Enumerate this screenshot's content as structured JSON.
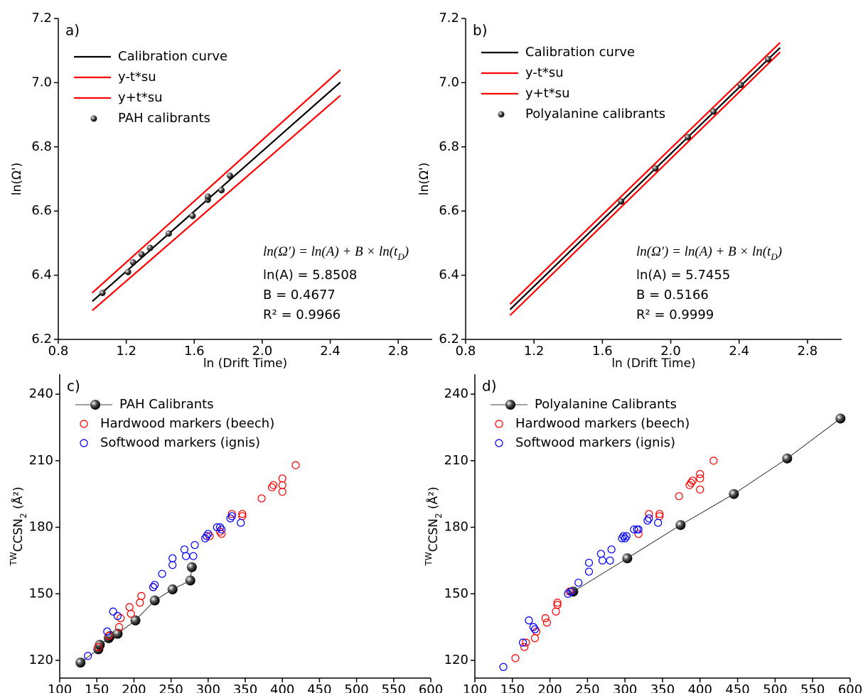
{
  "chart_data": [
    {
      "type": "scatter",
      "panel_label": "a)",
      "x_label": "ln (Drift Time)",
      "y_label": "ln(Ω')",
      "xlim": [
        0.8,
        3.0
      ],
      "xticks": [
        0.8,
        1.2,
        1.6,
        {
          "value": 2,
          "label": "2.0"
        },
        2.4,
        2.8
      ],
      "ylim": [
        6.2,
        7.2
      ],
      "yticks": [
        6.2,
        6.4,
        6.6,
        6.8,
        {
          "value": 7,
          "label": "7.0"
        },
        7.2
      ],
      "legend": "upper left",
      "series": [
        {
          "name": "Calibration curve",
          "mode": "line",
          "color": "#000000",
          "x": [
            1.0,
            2.46
          ],
          "values": [
            6.3185,
            7.0014
          ]
        },
        {
          "name": "y-t*su",
          "mode": "line",
          "color": "#ff0000",
          "x": [
            1.0,
            2.46
          ],
          "values": [
            6.29,
            6.96
          ]
        },
        {
          "name": "y+t*su",
          "mode": "line",
          "color": "#ff0000",
          "x": [
            1.0,
            2.46
          ],
          "values": [
            6.345,
            7.04
          ]
        },
        {
          "name": "PAH calibrants",
          "mode": "markers",
          "marker": "sphere",
          "color": "#000000",
          "x": [
            1.06,
            1.21,
            1.24,
            1.29,
            1.34,
            1.45,
            1.59,
            1.68,
            1.68,
            1.76,
            1.81
          ],
          "values": [
            6.345,
            6.41,
            6.44,
            6.465,
            6.485,
            6.53,
            6.585,
            6.635,
            6.645,
            6.665,
            6.71
          ]
        }
      ],
      "equation": [
        "ln(Ω′) = ln(A) + B × ln(t",
        "D",
        ")"
      ],
      "annotations": [
        "ln(A) = 5.8508",
        "B = 0.4677",
        "R² = 0.9966"
      ]
    },
    {
      "type": "scatter",
      "panel_label": "b)",
      "x_label": "ln (Drift Time)",
      "y_label": "ln(Ω')",
      "xlim": [
        0.8,
        3.0
      ],
      "xticks": [
        0.8,
        1.2,
        1.6,
        {
          "value": 2,
          "label": "2.0"
        },
        2.4,
        2.8
      ],
      "ylim": [
        6.2,
        7.2
      ],
      "yticks": [
        6.2,
        6.4,
        6.6,
        6.8,
        {
          "value": 7,
          "label": "7.0"
        },
        7.2
      ],
      "legend": "upper left",
      "series": [
        {
          "name": "Calibration curve",
          "mode": "line",
          "color": "#000000",
          "x": [
            1.06,
            2.64
          ],
          "values": [
            6.293,
            7.109
          ]
        },
        {
          "name": "y-t*su",
          "mode": "line",
          "color": "#ff0000",
          "x": [
            1.06,
            2.64
          ],
          "values": [
            6.275,
            7.095
          ]
        },
        {
          "name": "y+t*su",
          "mode": "line",
          "color": "#ff0000",
          "x": [
            1.06,
            2.64
          ],
          "values": [
            6.31,
            7.125
          ]
        },
        {
          "name": "Polyalanine calibrants",
          "mode": "markers",
          "marker": "sphere",
          "color": "#000000",
          "x": [
            1.71,
            1.91,
            2.1,
            2.25,
            2.41,
            2.57
          ],
          "values": [
            6.63,
            6.733,
            6.83,
            6.91,
            6.993,
            7.073
          ]
        }
      ],
      "equation": [
        "ln(Ω′) = ln(A) + B × ln(t",
        "D",
        ")"
      ],
      "annotations": [
        "ln(A) = 5.7455",
        "B = 0.5166",
        "R² = 0.9999"
      ]
    },
    {
      "type": "scatter",
      "panel_label": "c)",
      "x_label": "m/z",
      "y_label": [
        "TW",
        "CCSN",
        "2",
        " (Å²)"
      ],
      "xlim": [
        100,
        600
      ],
      "xticks": [
        100,
        150,
        200,
        250,
        300,
        350,
        400,
        450,
        500,
        550,
        600
      ],
      "ylim": [
        112,
        249
      ],
      "yticks": [
        120,
        150,
        180,
        210,
        240
      ],
      "legend": "upper left",
      "series": [
        {
          "name": "PAH Calibrants",
          "mode": "line+markers",
          "marker": "sphere",
          "color": "#000000",
          "x": [
            128,
            152,
            154,
            166,
            168,
            178,
            202,
            228,
            252,
            276,
            278
          ],
          "values": [
            119,
            125,
            127,
            130,
            131,
            132,
            138,
            147,
            152,
            156,
            162
          ]
        },
        {
          "name": "Hardwood markers (beech)",
          "mode": "markers",
          "marker": "open circle",
          "color": "#ff0000",
          "x": [
            152,
            166,
            180,
            182,
            194,
            196,
            208,
            210,
            226,
            302,
            316,
            318,
            332,
            346,
            346,
            372,
            386,
            388,
            400,
            400,
            400,
            418
          ],
          "values": [
            126,
            131,
            135,
            139,
            144,
            141,
            146,
            149,
            153,
            176,
            178,
            177,
            186,
            186,
            185,
            193,
            198,
            199,
            202,
            196,
            199,
            208
          ]
        },
        {
          "name": "Softwood markers (ignis)",
          "mode": "markers",
          "marker": "open circle",
          "color": "#0000ff",
          "x": [
            138,
            164,
            172,
            178,
            226,
            228,
            238,
            252,
            252,
            268,
            270,
            280,
            282,
            296,
            298,
            300,
            312,
            316,
            318,
            330,
            332,
            344
          ],
          "values": [
            122,
            133,
            142,
            140,
            153,
            154,
            159,
            163,
            166,
            170,
            167,
            167,
            172,
            175,
            176,
            177,
            180,
            180,
            179,
            184,
            185,
            182
          ]
        }
      ]
    },
    {
      "type": "scatter",
      "panel_label": "d)",
      "x_label": "m/z",
      "y_label": [
        "TW",
        "CCSN",
        "2",
        " (Å²)"
      ],
      "xlim": [
        100,
        600
      ],
      "xticks": [
        100,
        150,
        200,
        250,
        300,
        350,
        400,
        450,
        500,
        550,
        600
      ],
      "ylim": [
        112,
        249
      ],
      "yticks": [
        120,
        150,
        180,
        210,
        240
      ],
      "legend": "upper left",
      "series": [
        {
          "name": "Polyalanine Calibrants",
          "mode": "line+markers",
          "marker": "sphere",
          "color": "#000000",
          "x": [
            231,
            303,
            374,
            445,
            516,
            587
          ],
          "values": [
            151,
            166,
            181,
            195,
            211,
            229
          ]
        },
        {
          "name": "Hardwood markers (beech)",
          "mode": "markers",
          "marker": "open circle",
          "color": "#ff0000",
          "x": [
            154,
            166,
            168,
            180,
            182,
            194,
            196,
            208,
            210,
            210,
            226,
            318,
            332,
            346,
            346,
            372,
            386,
            388,
            390,
            400,
            400,
            400,
            418
          ],
          "values": [
            121,
            126,
            128,
            130,
            133,
            139,
            137,
            142,
            145,
            146,
            151,
            177,
            186,
            186,
            185,
            194,
            199,
            200,
            201,
            204,
            197,
            202,
            210
          ]
        },
        {
          "name": "Softwood markers (ignis)",
          "mode": "markers",
          "marker": "open circle",
          "color": "#0000ff",
          "x": [
            138,
            164,
            172,
            178,
            180,
            224,
            228,
            238,
            252,
            252,
            268,
            270,
            280,
            282,
            296,
            298,
            300,
            302,
            312,
            316,
            318,
            330,
            332,
            344
          ],
          "values": [
            117,
            128,
            138,
            135,
            134,
            150,
            151,
            155,
            160,
            164,
            168,
            165,
            165,
            170,
            175,
            176,
            175,
            176,
            179,
            179,
            179,
            183,
            184,
            182
          ]
        }
      ]
    }
  ]
}
